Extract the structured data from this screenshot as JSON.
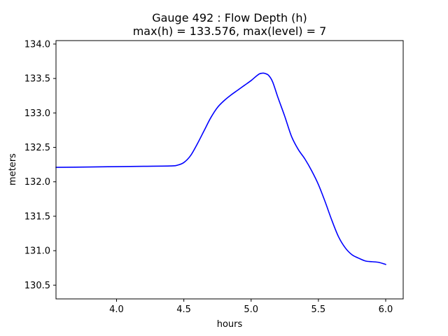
{
  "chart_data": {
    "type": "line",
    "title_line1": "Gauge 492 : Flow Depth (h)",
    "title_line2": "max(h) = 133.576,    max(level) = 7",
    "xlabel": "hours",
    "ylabel": "meters",
    "xlim": [
      3.55,
      6.13
    ],
    "ylim": [
      130.3,
      134.05
    ],
    "x_ticks": [
      4.0,
      4.5,
      5.0,
      5.5,
      6.0
    ],
    "x_tick_labels": [
      "4.0",
      "4.5",
      "5.0",
      "5.5",
      "6.0"
    ],
    "y_ticks": [
      130.5,
      131.0,
      131.5,
      132.0,
      132.5,
      133.0,
      133.5,
      134.0
    ],
    "y_tick_labels": [
      "130.5",
      "131.0",
      "131.5",
      "132.0",
      "132.5",
      "133.0",
      "133.5",
      "134.0"
    ],
    "grid": false,
    "series": [
      {
        "color": "#0000ff",
        "x": [
          3.55,
          3.8,
          4.0,
          4.2,
          4.4,
          4.45,
          4.5,
          4.55,
          4.6,
          4.65,
          4.7,
          4.75,
          4.8,
          4.85,
          4.9,
          4.95,
          5.0,
          5.03,
          5.06,
          5.08,
          5.1,
          5.13,
          5.16,
          5.2,
          5.25,
          5.3,
          5.35,
          5.4,
          5.45,
          5.5,
          5.55,
          5.6,
          5.65,
          5.7,
          5.75,
          5.8,
          5.85,
          5.9,
          5.95,
          6.0
        ],
        "y": [
          132.21,
          132.215,
          132.22,
          132.225,
          132.23,
          132.24,
          132.28,
          132.38,
          132.55,
          132.74,
          132.93,
          133.08,
          133.18,
          133.26,
          133.33,
          133.4,
          133.47,
          133.52,
          133.565,
          133.576,
          133.575,
          133.545,
          133.45,
          133.22,
          132.95,
          132.66,
          132.47,
          132.33,
          132.16,
          131.96,
          131.71,
          131.44,
          131.2,
          131.04,
          130.94,
          130.89,
          130.85,
          130.84,
          130.83,
          130.8
        ]
      }
    ]
  }
}
